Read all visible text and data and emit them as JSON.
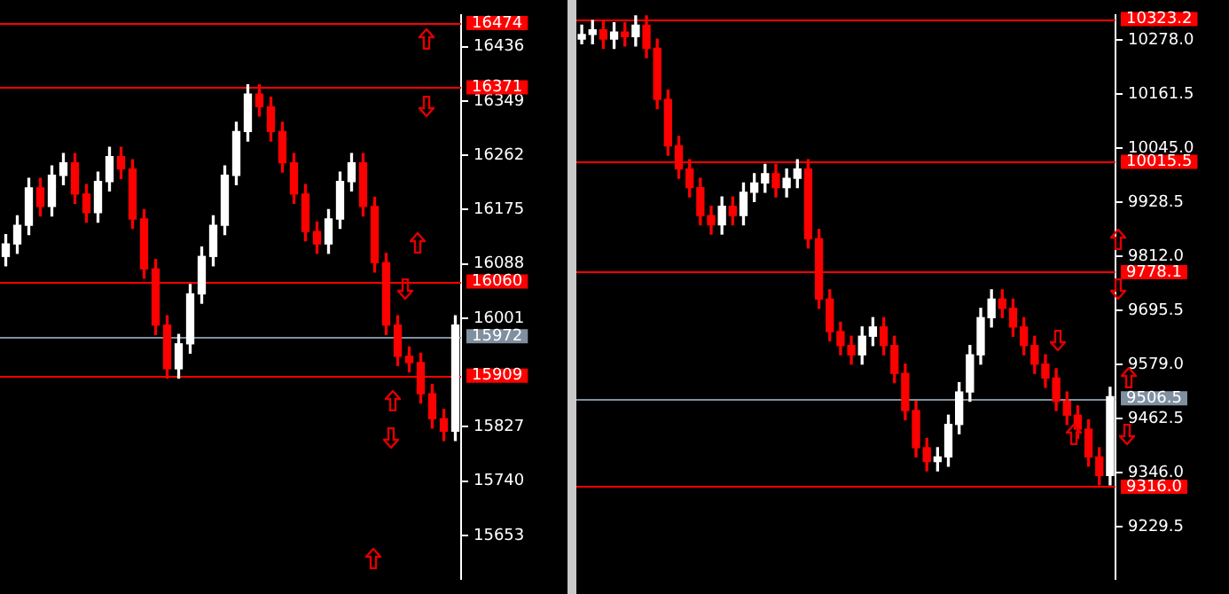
{
  "chart_data": [
    {
      "type": "candlestick",
      "categories": [
        null,
        null,
        null,
        null,
        null,
        null,
        null,
        null,
        null,
        null,
        null,
        null,
        null,
        null,
        null,
        null,
        null,
        null,
        null,
        null,
        null,
        null,
        null,
        null,
        null,
        null,
        null,
        null,
        null,
        null,
        null,
        null,
        null,
        null,
        null,
        null,
        null,
        null,
        null,
        null
      ],
      "ohlc": [
        [
          16100,
          16135,
          16085,
          16120
        ],
        [
          16120,
          16165,
          16105,
          16150
        ],
        [
          16150,
          16225,
          16135,
          16210
        ],
        [
          16210,
          16225,
          16165,
          16180
        ],
        [
          16180,
          16245,
          16165,
          16230
        ],
        [
          16230,
          16265,
          16215,
          16250
        ],
        [
          16250,
          16265,
          16185,
          16200
        ],
        [
          16200,
          16215,
          16155,
          16170
        ],
        [
          16170,
          16235,
          16155,
          16220
        ],
        [
          16220,
          16275,
          16205,
          16260
        ],
        [
          16260,
          16275,
          16225,
          16240
        ],
        [
          16240,
          16255,
          16145,
          16160
        ],
        [
          16160,
          16175,
          16065,
          16080
        ],
        [
          16080,
          16095,
          15975,
          15990
        ],
        [
          15990,
          16005,
          15905,
          15920
        ],
        [
          15920,
          15975,
          15905,
          15960
        ],
        [
          15960,
          16055,
          15945,
          16040
        ],
        [
          16040,
          16115,
          16025,
          16100
        ],
        [
          16100,
          16165,
          16085,
          16150
        ],
        [
          16150,
          16245,
          16135,
          16230
        ],
        [
          16230,
          16315,
          16215,
          16300
        ],
        [
          16300,
          16375,
          16285,
          16360
        ],
        [
          16360,
          16375,
          16325,
          16340
        ],
        [
          16340,
          16355,
          16285,
          16300
        ],
        [
          16300,
          16315,
          16235,
          16250
        ],
        [
          16250,
          16265,
          16185,
          16200
        ],
        [
          16200,
          16215,
          16125,
          16140
        ],
        [
          16140,
          16155,
          16105,
          16120
        ],
        [
          16120,
          16175,
          16105,
          16160
        ],
        [
          16160,
          16235,
          16145,
          16220
        ],
        [
          16220,
          16265,
          16205,
          16250
        ],
        [
          16250,
          16265,
          16165,
          16180
        ],
        [
          16180,
          16195,
          16075,
          16090
        ],
        [
          16090,
          16105,
          15975,
          15990
        ],
        [
          15990,
          16005,
          15925,
          15940
        ],
        [
          15940,
          15955,
          15915,
          15930
        ],
        [
          15930,
          15945,
          15865,
          15880
        ],
        [
          15880,
          15895,
          15825,
          15840
        ],
        [
          15840,
          15855,
          15805,
          15820
        ],
        [
          15820,
          16005,
          15805,
          15990
        ]
      ],
      "ylim": [
        15583,
        16487
      ],
      "yticks": [
        16436,
        16349,
        16262,
        16175,
        16088,
        16001,
        15827,
        15740,
        15653
      ],
      "tick_labels": "y",
      "ref_lines": [
        {
          "axis": "y",
          "value": 16474,
          "label": "16474",
          "color": "#ff0000"
        },
        {
          "axis": "y",
          "value": 16371,
          "label": "16371",
          "color": "#ff0000"
        },
        {
          "axis": "y",
          "value": 16060,
          "label": "16060",
          "color": "#ff0000"
        },
        {
          "axis": "y",
          "value": 15972,
          "label": "15972",
          "color": "#8090a0"
        },
        {
          "axis": "y",
          "value": 15909,
          "label": "15909",
          "color": "#ff0000"
        }
      ]
    },
    {
      "type": "candlestick",
      "categories": [
        null,
        null,
        null,
        null,
        null,
        null,
        null,
        null,
        null,
        null,
        null,
        null,
        null,
        null,
        null,
        null,
        null,
        null,
        null,
        null,
        null,
        null,
        null,
        null,
        null,
        null,
        null,
        null,
        null,
        null,
        null,
        null,
        null,
        null,
        null,
        null,
        null,
        null,
        null,
        null,
        null,
        null,
        null,
        null,
        null,
        null,
        null,
        null,
        null,
        null
      ],
      "ohlc": [
        [
          10280,
          10310,
          10270,
          10290
        ],
        [
          10290,
          10320,
          10270,
          10300
        ],
        [
          10300,
          10320,
          10260,
          10280
        ],
        [
          10280,
          10315,
          10260,
          10295
        ],
        [
          10295,
          10315,
          10265,
          10285
        ],
        [
          10285,
          10330,
          10265,
          10310
        ],
        [
          10310,
          10330,
          10240,
          10260
        ],
        [
          10260,
          10280,
          10130,
          10150
        ],
        [
          10150,
          10170,
          10030,
          10050
        ],
        [
          10050,
          10070,
          9980,
          10000
        ],
        [
          10000,
          10020,
          9940,
          9960
        ],
        [
          9960,
          9980,
          9880,
          9900
        ],
        [
          9900,
          9920,
          9860,
          9880
        ],
        [
          9880,
          9940,
          9860,
          9920
        ],
        [
          9920,
          9940,
          9880,
          9900
        ],
        [
          9900,
          9970,
          9880,
          9950
        ],
        [
          9950,
          9990,
          9930,
          9970
        ],
        [
          9970,
          10010,
          9950,
          9990
        ],
        [
          9990,
          10010,
          9940,
          9960
        ],
        [
          9960,
          10000,
          9940,
          9980
        ],
        [
          9980,
          10020,
          9960,
          10000
        ],
        [
          10000,
          10020,
          9830,
          9850
        ],
        [
          9850,
          9870,
          9700,
          9720
        ],
        [
          9720,
          9740,
          9630,
          9650
        ],
        [
          9650,
          9670,
          9600,
          9620
        ],
        [
          9620,
          9640,
          9580,
          9600
        ],
        [
          9600,
          9660,
          9580,
          9640
        ],
        [
          9640,
          9680,
          9620,
          9660
        ],
        [
          9660,
          9680,
          9600,
          9620
        ],
        [
          9620,
          9640,
          9540,
          9560
        ],
        [
          9560,
          9580,
          9460,
          9480
        ],
        [
          9480,
          9500,
          9380,
          9400
        ],
        [
          9400,
          9420,
          9350,
          9370
        ],
        [
          9370,
          9400,
          9350,
          9380
        ],
        [
          9380,
          9470,
          9360,
          9450
        ],
        [
          9450,
          9540,
          9430,
          9520
        ],
        [
          9520,
          9620,
          9500,
          9600
        ],
        [
          9600,
          9700,
          9580,
          9680
        ],
        [
          9680,
          9740,
          9660,
          9720
        ],
        [
          9720,
          9740,
          9680,
          9700
        ],
        [
          9700,
          9720,
          9640,
          9660
        ],
        [
          9660,
          9680,
          9600,
          9620
        ],
        [
          9620,
          9640,
          9560,
          9580
        ],
        [
          9580,
          9600,
          9530,
          9550
        ],
        [
          9550,
          9570,
          9480,
          9500
        ],
        [
          9500,
          9520,
          9450,
          9470
        ],
        [
          9470,
          9490,
          9420,
          9440
        ],
        [
          9440,
          9460,
          9360,
          9380
        ],
        [
          9380,
          9400,
          9320,
          9340
        ],
        [
          9340,
          9530,
          9320,
          9510
        ]
      ],
      "ylim": [
        9117,
        10332
      ],
      "yticks": [
        {
          "value": 10278,
          "label": "10278.0"
        },
        {
          "value": 10161.5,
          "label": "10161.5"
        },
        {
          "value": 10045,
          "label": "10045.0"
        },
        {
          "value": 9928.5,
          "label": "9928.5"
        },
        {
          "value": 9812,
          "label": "9812.0"
        },
        {
          "value": 9695.5,
          "label": "9695.5"
        },
        {
          "value": 9579,
          "label": "9579.0"
        },
        {
          "value": 9462.5,
          "label": "9462.5"
        },
        {
          "value": 9346,
          "label": "9346.0"
        },
        {
          "value": 9229.5,
          "label": "9229.5"
        }
      ],
      "tick_labels": "y",
      "ref_lines": [
        {
          "axis": "y",
          "value": 10323.2,
          "label": "10323.2",
          "color": "#ff0000"
        },
        {
          "axis": "y",
          "value": 10015.5,
          "label": "10015.5",
          "color": "#ff0000"
        },
        {
          "axis": "y",
          "value": 9778.1,
          "label": "9778.1",
          "color": "#ff0000"
        },
        {
          "axis": "y",
          "value": 9506.5,
          "label": "9506.5",
          "color": "#8090a0"
        },
        {
          "axis": "y",
          "value": 9316,
          "label": "9316.0",
          "color": "#ff0000"
        }
      ]
    }
  ]
}
